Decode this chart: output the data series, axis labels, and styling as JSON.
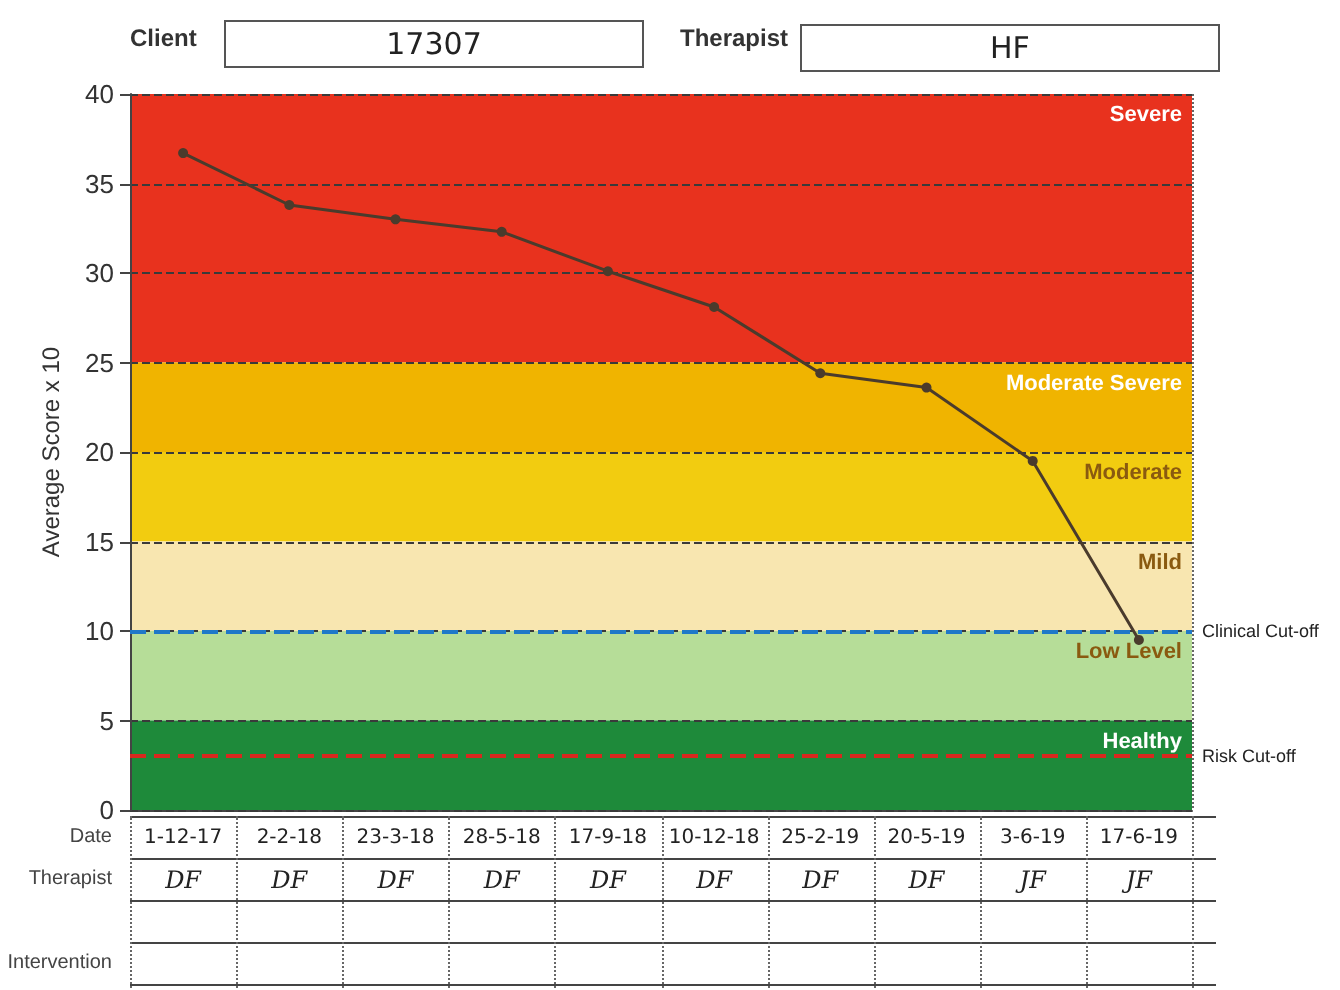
{
  "chart_data": {
    "type": "line",
    "ylabel": "Average Score x 10",
    "categories": [
      "1-12-17",
      "2-2-18",
      "23-3-18",
      "28-5-18",
      "17-9-18",
      "10-12-18",
      "25-2-19",
      "20-5-19",
      "3-6-19",
      "17-6-19"
    ],
    "series": [
      {
        "color": "#4a3b2c",
        "values": [
          36.7,
          33.8,
          33.0,
          32.3,
          30.1,
          28.1,
          24.4,
          23.6,
          19.5,
          9.5
        ]
      }
    ],
    "ylim": [
      0,
      40
    ],
    "yticks": [
      0,
      5,
      10,
      15,
      20,
      25,
      30,
      35,
      40
    ],
    "grid": true,
    "marker": "circle",
    "line_style": "solid",
    "bands": [
      {
        "axis": "y",
        "from": 25,
        "to": 40,
        "label": "Severe",
        "color": "#e8321e"
      },
      {
        "axis": "y",
        "from": 20,
        "to": 25,
        "label": "Moderate Severe",
        "color": "#f0b400"
      },
      {
        "axis": "y",
        "from": 15,
        "to": 20,
        "label": "Moderate",
        "color": "#f2cc10"
      },
      {
        "axis": "y",
        "from": 10,
        "to": 15,
        "label": "Mild",
        "color": "#f8e6b0"
      },
      {
        "axis": "y",
        "from": 5,
        "to": 10,
        "label": "Low Level",
        "color": "#b6dd98"
      },
      {
        "axis": "y",
        "from": 0,
        "to": 5,
        "label": "Healthy",
        "color": "#1e8a3a"
      }
    ],
    "ref_lines": [
      {
        "axis": "y",
        "value": 10,
        "label": "Clinical Cut-off",
        "color": "#1f78c8",
        "line_style": "dashed"
      },
      {
        "axis": "y",
        "value": 3,
        "label": "Risk Cut-off",
        "color": "#d8281e",
        "line_style": "dashed"
      }
    ],
    "annotations": [
      "Client",
      "17307",
      "Therapist",
      "HF",
      "Date",
      "Therapist",
      "Intervention",
      "DF",
      "DF",
      "DF",
      "DF",
      "DF",
      "DF",
      "DF",
      "DF",
      "JF",
      "JF"
    ]
  }
}
